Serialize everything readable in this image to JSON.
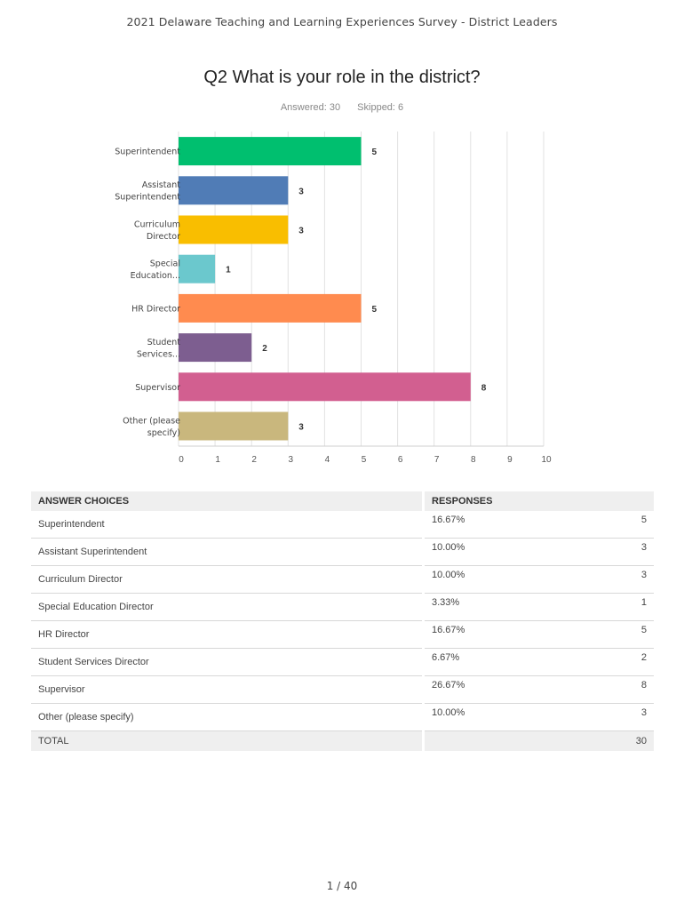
{
  "header": {
    "title": "2021 Delaware Teaching and Learning Experiences Survey - District Leaders"
  },
  "question": {
    "title": "Q2 What is your role in the district?",
    "answered": "Answered: 30",
    "skipped": "Skipped: 6"
  },
  "chart_data": {
    "type": "bar",
    "orientation": "horizontal",
    "title": "Q2 What is your role in the district?",
    "categories": [
      [
        "Superintendent"
      ],
      [
        "Assistant",
        "Superintendent"
      ],
      [
        "Curriculum",
        "Director"
      ],
      [
        "Special",
        "Education..."
      ],
      [
        "HR Director"
      ],
      [
        "Student",
        "Services..."
      ],
      [
        "Supervisor"
      ],
      [
        "Other (please",
        "specify)"
      ]
    ],
    "values": [
      5,
      3,
      3,
      1,
      5,
      2,
      8,
      3
    ],
    "colors": [
      "#00bf6f",
      "#507cb6",
      "#f9be00",
      "#6bc8cd",
      "#ff8b4f",
      "#7d5e90",
      "#d25f90",
      "#c9b77d"
    ],
    "xlim": [
      0,
      10
    ],
    "xticks": [
      "0",
      "1",
      "2",
      "3",
      "4",
      "5",
      "6",
      "7",
      "8",
      "9",
      "10"
    ],
    "grid": true
  },
  "table": {
    "headers": {
      "choices": "ANSWER CHOICES",
      "responses": "RESPONSES"
    },
    "rows": [
      {
        "choice": "Superintendent",
        "percent": "16.67%",
        "count": "5"
      },
      {
        "choice": "Assistant Superintendent",
        "percent": "10.00%",
        "count": "3"
      },
      {
        "choice": "Curriculum Director",
        "percent": "10.00%",
        "count": "3"
      },
      {
        "choice": "Special Education Director",
        "percent": "3.33%",
        "count": "1"
      },
      {
        "choice": "HR Director",
        "percent": "16.67%",
        "count": "5"
      },
      {
        "choice": "Student Services Director",
        "percent": "6.67%",
        "count": "2"
      },
      {
        "choice": "Supervisor",
        "percent": "26.67%",
        "count": "8"
      },
      {
        "choice": "Other (please specify)",
        "percent": "10.00%",
        "count": "3"
      }
    ],
    "total": {
      "label": "TOTAL",
      "count": "30"
    }
  },
  "footer": {
    "page": "1 / 40"
  }
}
